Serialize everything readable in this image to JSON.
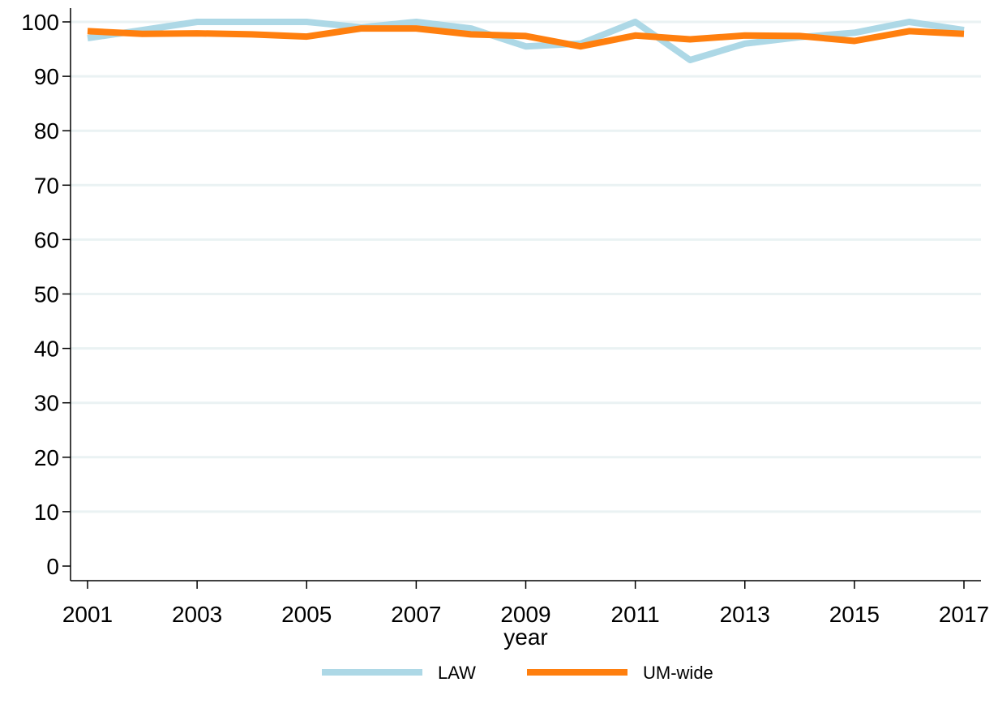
{
  "chart_data": {
    "type": "line",
    "title": "",
    "xlabel": "year",
    "ylabel": "",
    "x": [
      2001,
      2002,
      2003,
      2004,
      2005,
      2006,
      2007,
      2008,
      2009,
      2010,
      2011,
      2012,
      2013,
      2014,
      2015,
      2016,
      2017
    ],
    "x_ticks": [
      "2001",
      "2003",
      "2005",
      "2007",
      "2009",
      "2011",
      "2013",
      "2015",
      "2017"
    ],
    "xlim": [
      2001,
      2017
    ],
    "y_ticks": [
      "0",
      "10",
      "20",
      "30",
      "40",
      "50",
      "60",
      "70",
      "80",
      "90",
      "100"
    ],
    "ylim": [
      0,
      100
    ],
    "grid": true,
    "legend_position": "bottom",
    "series": [
      {
        "name": "LAW",
        "color": "#add8e6",
        "values": [
          97.0,
          98.5,
          100.0,
          100.0,
          100.0,
          99.0,
          100.0,
          98.8,
          95.5,
          96.0,
          100.0,
          93.0,
          96.0,
          97.2,
          98.0,
          100.0,
          98.5
        ]
      },
      {
        "name": "UM-wide",
        "color": "#ff7f0e",
        "values": [
          98.3,
          97.8,
          97.9,
          97.7,
          97.3,
          98.8,
          98.8,
          97.7,
          97.4,
          95.5,
          97.5,
          96.8,
          97.5,
          97.4,
          96.5,
          98.3,
          97.8
        ]
      }
    ]
  }
}
